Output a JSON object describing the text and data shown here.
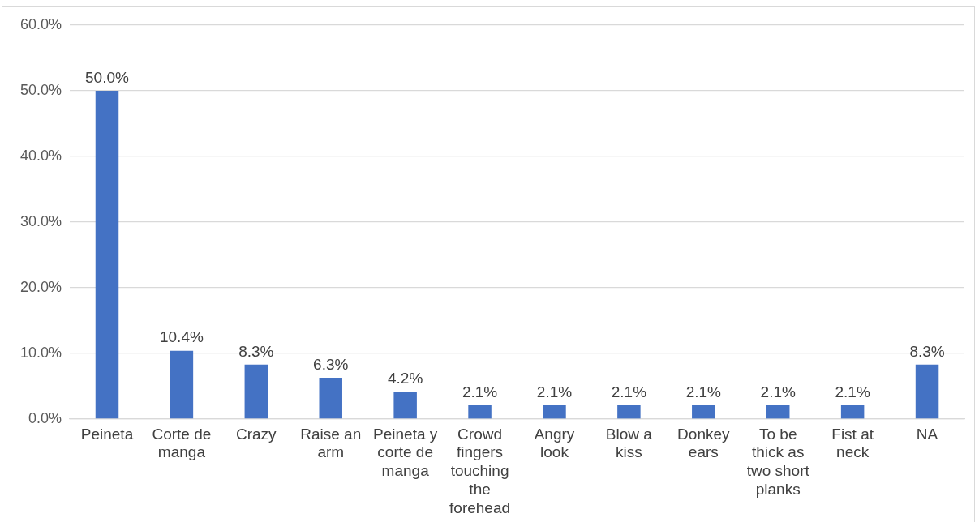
{
  "chart_data": {
    "type": "bar",
    "categories": [
      "Peineta",
      "Corte de manga",
      "Crazy",
      "Raise an arm",
      "Peineta y corte de manga",
      "Crowd fingers touching the forehead",
      "Angry look",
      "Blow a kiss",
      "Donkey ears",
      "To be thick as two short planks",
      "Fist at neck",
      "NA"
    ],
    "values": [
      50.0,
      10.4,
      8.3,
      6.3,
      4.2,
      2.1,
      2.1,
      2.1,
      2.1,
      2.1,
      2.1,
      8.3
    ],
    "value_labels": [
      "50.0%",
      "10.4%",
      "8.3%",
      "6.3%",
      "4.2%",
      "2.1%",
      "2.1%",
      "2.1%",
      "2.1%",
      "2.1%",
      "2.1%",
      "8.3%"
    ],
    "color": "#4472c4",
    "ylim": [
      0,
      60
    ],
    "yticks": [
      {
        "value": 0,
        "label": "0.0%"
      },
      {
        "value": 10,
        "label": "10.0%"
      },
      {
        "value": 20,
        "label": "20.0%"
      },
      {
        "value": 30,
        "label": "30.0%"
      },
      {
        "value": 40,
        "label": "40.0%"
      },
      {
        "value": 50,
        "label": "50.0%"
      },
      {
        "value": 60,
        "label": "60.0%"
      }
    ],
    "grid": "y",
    "legend": false
  }
}
